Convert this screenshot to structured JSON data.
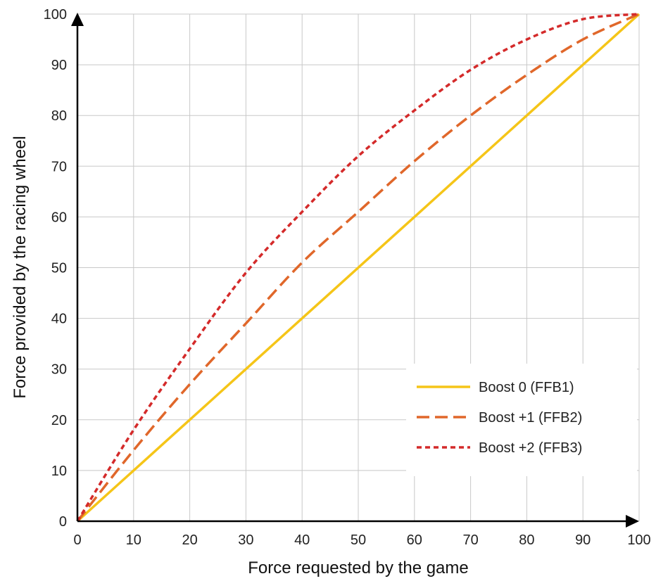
{
  "chart_data": {
    "type": "line",
    "title": "",
    "xlabel": "Force requested by the game",
    "ylabel": "Force provided by the racing wheel",
    "xlim": [
      0,
      100
    ],
    "ylim": [
      0,
      100
    ],
    "x_ticks": [
      0,
      10,
      20,
      30,
      40,
      50,
      60,
      70,
      80,
      90,
      100
    ],
    "y_ticks": [
      0,
      10,
      20,
      30,
      40,
      50,
      60,
      70,
      80,
      90,
      100
    ],
    "grid": true,
    "legend_position": "bottom-right",
    "series": [
      {
        "name": "Boost 0 (FFB1)",
        "color": "#f5c518",
        "line_style": "solid",
        "x": [
          0,
          10,
          20,
          30,
          40,
          50,
          60,
          70,
          80,
          90,
          100
        ],
        "y": [
          0,
          10,
          20,
          30,
          40,
          50,
          60,
          70,
          80,
          90,
          100
        ]
      },
      {
        "name": "Boost +1 (FFB2)",
        "color": "#e0672a",
        "line_style": "dashed",
        "x": [
          0,
          10,
          20,
          30,
          40,
          50,
          60,
          70,
          80,
          90,
          100
        ],
        "y": [
          0,
          14,
          27,
          39,
          51,
          61,
          71,
          80,
          88,
          95,
          100
        ]
      },
      {
        "name": "Boost +2 (FFB3)",
        "color": "#d42a2a",
        "line_style": "dotted",
        "x": [
          0,
          10,
          20,
          30,
          40,
          50,
          60,
          70,
          80,
          90,
          100
        ],
        "y": [
          0,
          18,
          34,
          49,
          61,
          72,
          81,
          89,
          95,
          99,
          100
        ]
      }
    ]
  }
}
